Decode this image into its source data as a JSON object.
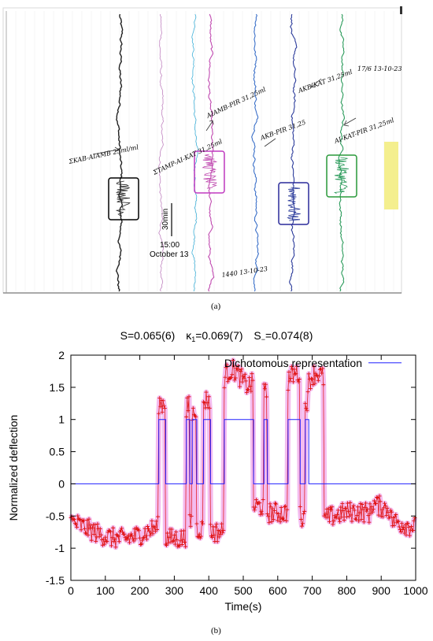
{
  "panel_a": {
    "caption": "(a)",
    "scale_label": "30min",
    "time_label": "15:00",
    "date_label": "October 13",
    "annotations": [
      "ΣKAB-AIAMB 25ml/ml",
      "ΣTAMP-AI-KAT 31,25ml",
      "AIAMB-PIR 31,25ml",
      "AKB-PIR 31,25",
      "AKB-KAT 31,25ml",
      "AI-KAT-PIR 31,25ml",
      "17/6 13-10-23",
      "1440 13-10-23"
    ],
    "colors": {
      "trace_black": "#222222",
      "trace_pink": "#c084c0",
      "trace_cyan": "#3fb0d8",
      "trace_magenta": "#c04ab0",
      "trace_blue": "#3a6fc8",
      "trace_navy": "#2a3a9a",
      "trace_green": "#2a9a5a",
      "box_black": "#000000",
      "box_magenta": "#c03ac0",
      "box_navy": "#2a2a9a",
      "box_green": "#2a9a3a",
      "highlight": "#f2ec7a"
    }
  },
  "panel_b": {
    "caption": "(b)",
    "s_label": "S=0.065(6)",
    "kappa_label": "κ",
    "kappa_sub": "1",
    "kappa_value": "=0.069(7)",
    "s_minus_label": "S",
    "s_minus_sub": "−",
    "s_minus_value": "=0.074(8)"
  },
  "chart_data": {
    "type": "line",
    "title": "",
    "xlabel": "Time(s)",
    "ylabel": "Normalized deflection",
    "xlim": [
      0,
      1000
    ],
    "ylim": [
      -1.5,
      2
    ],
    "xticks": [
      0,
      100,
      200,
      300,
      400,
      500,
      600,
      700,
      800,
      900,
      1000
    ],
    "yticks": [
      -1.5,
      -1,
      -0.5,
      0,
      0.5,
      1,
      1.5,
      2
    ],
    "legend": {
      "position": "top-right",
      "entries": [
        "Dichotomous representation"
      ]
    },
    "series": [
      {
        "name": "Dichotomous representation",
        "color": "#2020ff",
        "step_x": [
          0,
          255,
          255,
          275,
          275,
          335,
          335,
          345,
          345,
          352,
          352,
          365,
          365,
          385,
          385,
          405,
          405,
          445,
          445,
          530,
          530,
          560,
          560,
          570,
          570,
          630,
          630,
          665,
          665,
          680,
          680,
          690,
          690,
          735,
          735,
          1000
        ],
        "step_y": [
          0,
          0,
          1,
          1,
          0,
          0,
          1,
          1,
          0,
          0,
          1,
          1,
          0,
          0,
          1,
          1,
          0,
          0,
          1,
          1,
          0,
          0,
          1,
          1,
          0,
          0,
          1,
          1,
          0,
          0,
          1,
          1,
          0,
          0,
          0,
          0
        ]
      },
      {
        "name": "",
        "color": "#e01010",
        "band_color": "#f0a0e8",
        "segments": [
          {
            "x0": 0,
            "x1": 255,
            "level": -0.8
          },
          {
            "x0": 255,
            "x1": 275,
            "level": 1.25
          },
          {
            "x0": 275,
            "x1": 335,
            "level": -0.85
          },
          {
            "x0": 335,
            "x1": 345,
            "level": 1.2
          },
          {
            "x0": 345,
            "x1": 352,
            "level": -0.6
          },
          {
            "x0": 352,
            "x1": 365,
            "level": 1.1
          },
          {
            "x0": 365,
            "x1": 385,
            "level": -0.7
          },
          {
            "x0": 385,
            "x1": 405,
            "level": 1.3
          },
          {
            "x0": 405,
            "x1": 445,
            "level": -0.75
          },
          {
            "x0": 445,
            "x1": 530,
            "level": 1.65
          },
          {
            "x0": 530,
            "x1": 560,
            "level": -0.35
          },
          {
            "x0": 560,
            "x1": 570,
            "level": 1.4
          },
          {
            "x0": 570,
            "x1": 630,
            "level": -0.45
          },
          {
            "x0": 630,
            "x1": 665,
            "level": 1.6
          },
          {
            "x0": 665,
            "x1": 680,
            "level": -0.5
          },
          {
            "x0": 680,
            "x1": 690,
            "level": 1.3
          },
          {
            "x0": 690,
            "x1": 735,
            "level": 1.6
          },
          {
            "x0": 735,
            "x1": 1000,
            "level": -0.5
          }
        ]
      }
    ]
  }
}
